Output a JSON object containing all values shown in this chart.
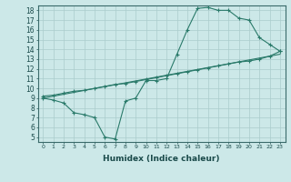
{
  "xlabel": "Humidex (Indice chaleur)",
  "bg_color": "#cce8e8",
  "line_color": "#2a7a6a",
  "grid_color": "#aacccc",
  "xlim": [
    -0.5,
    23.5
  ],
  "ylim": [
    4.5,
    18.5
  ],
  "xticks": [
    0,
    1,
    2,
    3,
    4,
    5,
    6,
    7,
    8,
    9,
    10,
    11,
    12,
    13,
    14,
    15,
    16,
    17,
    18,
    19,
    20,
    21,
    22,
    23
  ],
  "yticks": [
    5,
    6,
    7,
    8,
    9,
    10,
    11,
    12,
    13,
    14,
    15,
    16,
    17,
    18
  ],
  "line1_x": [
    0,
    1,
    2,
    3,
    4,
    5,
    6,
    7,
    8,
    9,
    10,
    11,
    12,
    13,
    14,
    15,
    16,
    17,
    18,
    19,
    20,
    21,
    22,
    23
  ],
  "line1_y": [
    9.0,
    8.8,
    8.5,
    7.5,
    7.3,
    7.0,
    5.0,
    4.8,
    8.7,
    9.0,
    10.8,
    10.8,
    11.0,
    13.5,
    16.0,
    18.2,
    18.3,
    18.0,
    18.0,
    17.2,
    17.0,
    15.2,
    14.5,
    13.8
  ],
  "line2_x": [
    0,
    1,
    2,
    3,
    4,
    5,
    6,
    7,
    8,
    9,
    10,
    11,
    12,
    13,
    14,
    15,
    16,
    17,
    18,
    19,
    20,
    21,
    22,
    23
  ],
  "line2_y": [
    9.2,
    9.3,
    9.5,
    9.7,
    9.8,
    10.0,
    10.2,
    10.4,
    10.5,
    10.7,
    10.9,
    11.1,
    11.3,
    11.5,
    11.7,
    11.9,
    12.1,
    12.3,
    12.5,
    12.7,
    12.8,
    13.0,
    13.3,
    13.8
  ],
  "line3_x": [
    0,
    23
  ],
  "line3_y": [
    9.0,
    13.5
  ]
}
